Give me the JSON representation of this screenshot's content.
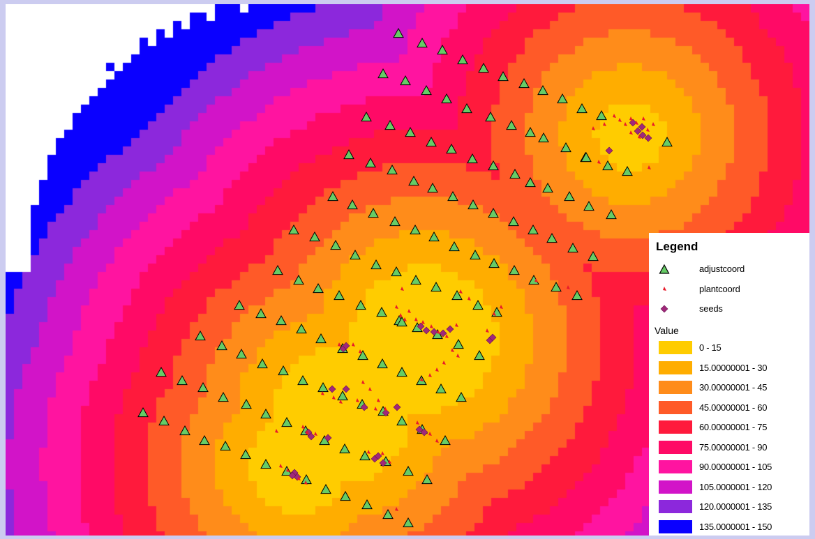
{
  "legend": {
    "title": "Legend",
    "point_layers": [
      {
        "label": "adjustcoord",
        "symbol": "triangle-icon",
        "fill": "#66cc66",
        "stroke": "#000000"
      },
      {
        "label": "plantcoord",
        "symbol": "small-flag-icon",
        "fill": "#e81a2a",
        "stroke": "#e81a2a"
      },
      {
        "label": "seeds",
        "symbol": "diamond-icon",
        "fill": "#a0287a",
        "stroke": "#a0287a"
      }
    ],
    "value_label": "Value",
    "classes": [
      {
        "label": "0 - 15",
        "color": "#ffcc00"
      },
      {
        "label": "15.00000001 - 30",
        "color": "#ffad00"
      },
      {
        "label": "30.00000001 - 45",
        "color": "#ff8c1a"
      },
      {
        "label": "45.00000001 - 60",
        "color": "#ff5a28"
      },
      {
        "label": "60.00000001 - 75",
        "color": "#ff1a3c"
      },
      {
        "label": "75.00000001 - 90",
        "color": "#ff0a66"
      },
      {
        "label": "90.00000001 - 105",
        "color": "#ff14a0"
      },
      {
        "label": "105.0000001 - 120",
        "color": "#d214c8"
      },
      {
        "label": "120.0000001 - 135",
        "color": "#8c28dc"
      },
      {
        "label": "135.0000001 - 150",
        "color": "#0a00ff"
      }
    ]
  }
}
